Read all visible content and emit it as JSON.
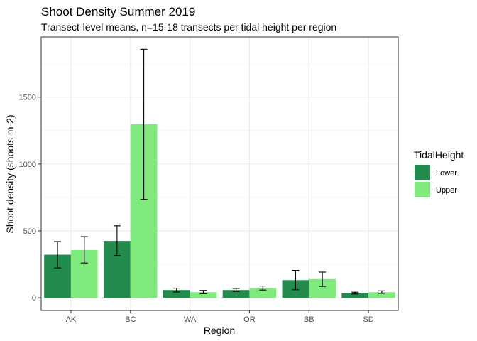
{
  "chart_data": {
    "type": "bar",
    "title": "Shoot Density Summer 2019",
    "subtitle": "Transect-level means, n=15-18 transects per tidal height per region",
    "xlabel": "Region",
    "ylabel": "Shoot density (shoots m-2)",
    "categories": [
      "AK",
      "BC",
      "WA",
      "OR",
      "BB",
      "SD"
    ],
    "series": [
      {
        "name": "Lower",
        "color": "#238B4D",
        "values": [
          322,
          425,
          58,
          58,
          132,
          35
        ],
        "error_low": [
          223,
          315,
          43,
          47,
          60,
          28
        ],
        "error_high": [
          420,
          538,
          72,
          70,
          205,
          42
        ]
      },
      {
        "name": "Upper",
        "color": "#80EA7E",
        "values": [
          357,
          1298,
          42,
          72,
          140,
          42
        ],
        "error_low": [
          260,
          735,
          30,
          58,
          85,
          33
        ],
        "error_high": [
          457,
          1858,
          55,
          88,
          192,
          52
        ]
      }
    ],
    "yticks": [
      0,
      500,
      1000,
      1500
    ],
    "ylim": [
      -95,
      1950
    ],
    "grid": true,
    "legend": {
      "title": "TidalHeight",
      "position": "right",
      "entries": [
        "Lower",
        "Upper"
      ]
    }
  }
}
